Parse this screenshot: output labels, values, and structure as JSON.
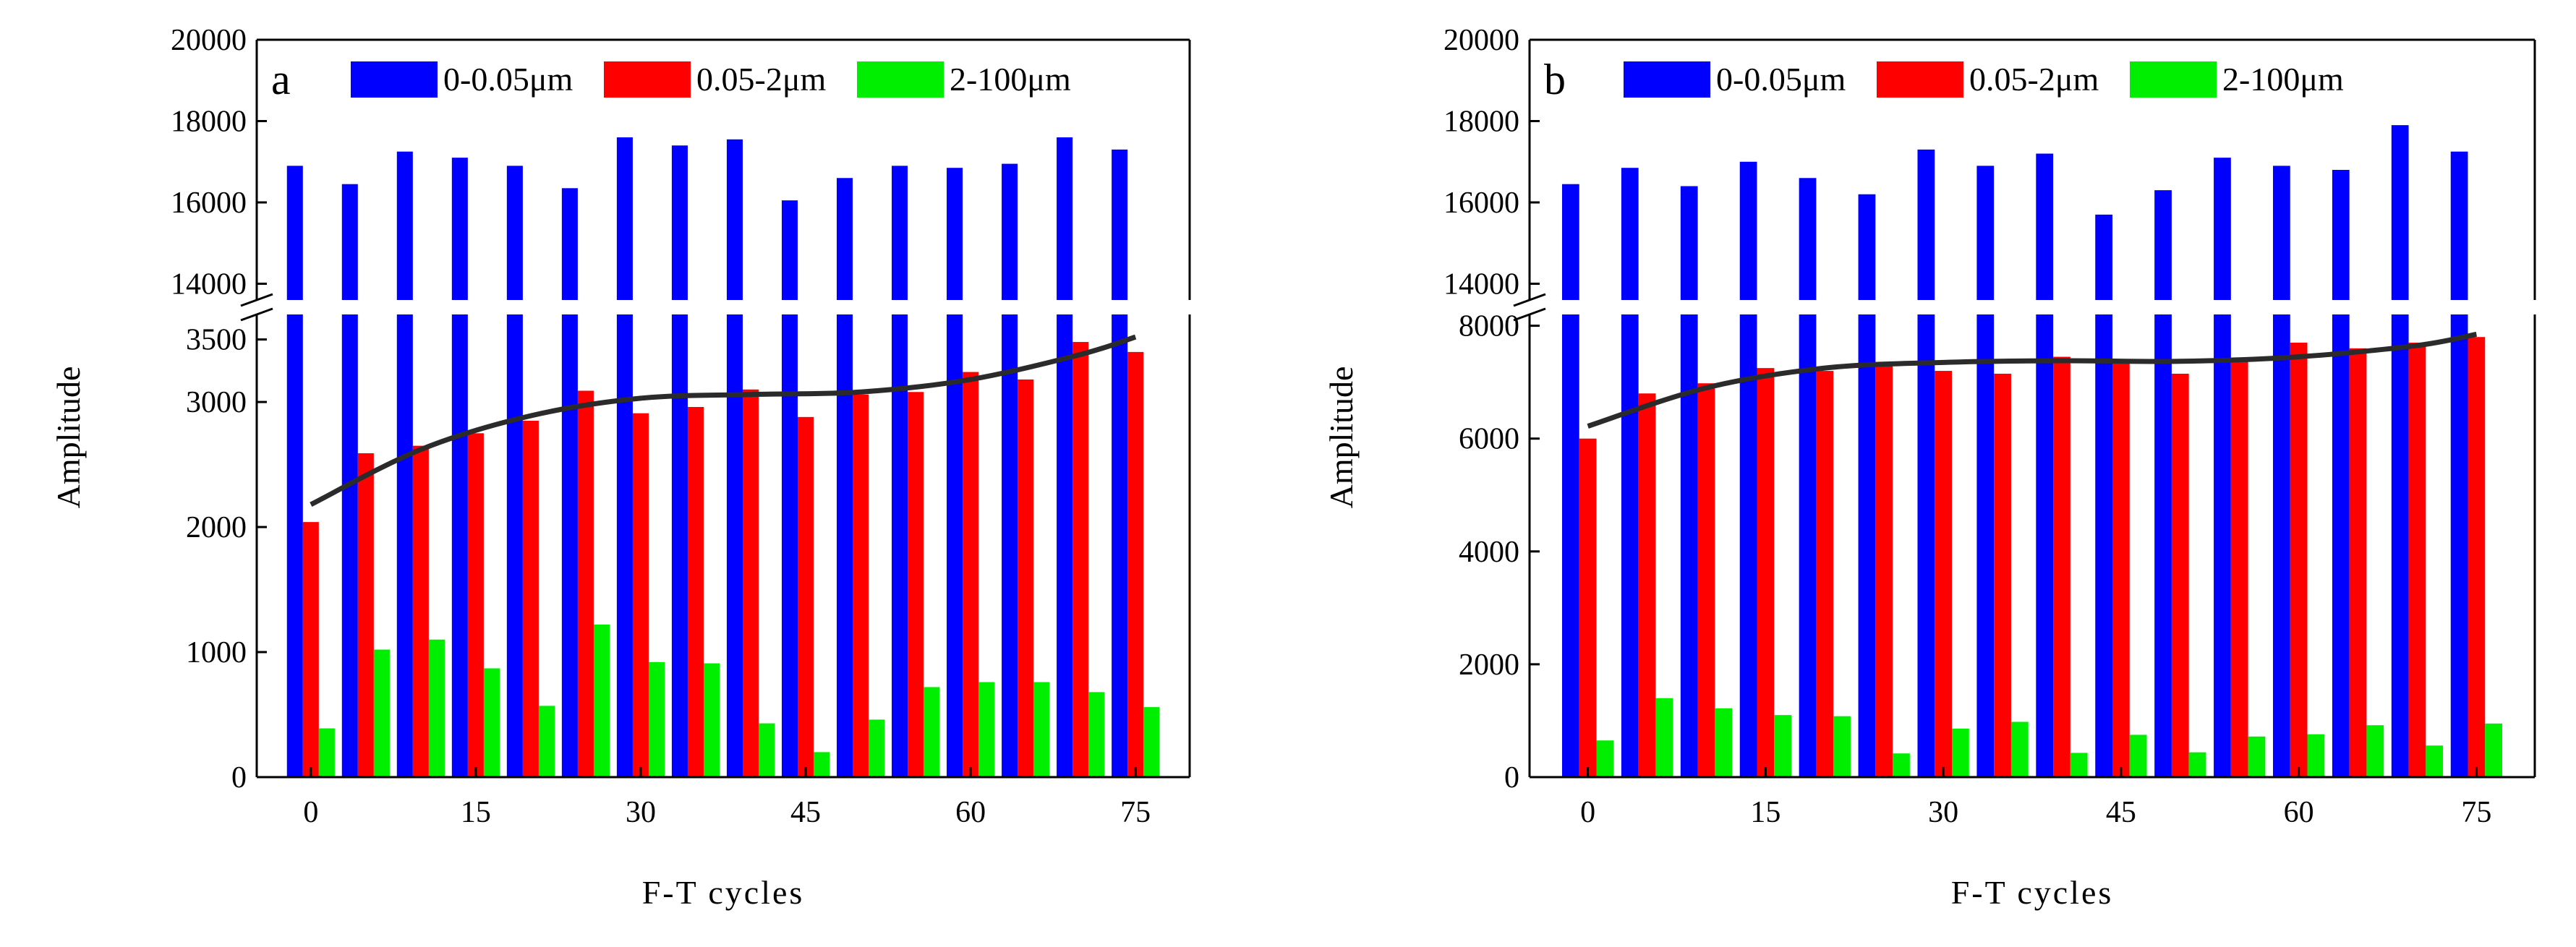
{
  "chart_data": [
    {
      "type": "bar",
      "panel_label": "a",
      "xlabel": "F-T cycles",
      "ylabel": "Amplitude",
      "x": [
        0,
        5,
        10,
        15,
        20,
        25,
        30,
        35,
        40,
        45,
        50,
        55,
        60,
        65,
        70,
        75
      ],
      "xticks": [
        "0",
        "15",
        "30",
        "45",
        "60",
        "75"
      ],
      "legend_position": "top",
      "series": [
        {
          "name": "0-0.05μm",
          "color": "#0000ff",
          "values": [
            16900,
            16450,
            17250,
            17100,
            16900,
            16350,
            17600,
            17400,
            17550,
            16050,
            16600,
            16900,
            16850,
            16950,
            17600,
            17300
          ]
        },
        {
          "name": "0.05-2μm",
          "color": "#ff0000",
          "values": [
            2040,
            2590,
            2650,
            2750,
            2850,
            3090,
            2910,
            2960,
            3100,
            2880,
            3060,
            3080,
            3240,
            3180,
            3480,
            3400
          ]
        },
        {
          "name": "2-100μm",
          "color": "#00ee00",
          "values": [
            390,
            1020,
            1100,
            870,
            570,
            1220,
            920,
            910,
            430,
            200,
            460,
            720,
            760,
            760,
            680,
            560
          ]
        }
      ],
      "trend_line": {
        "x": [
          0,
          10,
          20,
          30,
          40,
          50,
          60,
          70,
          75
        ],
        "y": [
          2180,
          2620,
          2890,
          3030,
          3060,
          3080,
          3180,
          3380,
          3520
        ]
      },
      "broken_axis": {
        "lower": {
          "ylim": [
            0,
            3700
          ],
          "ticks": [
            "0",
            "1000",
            "2000",
            "3000",
            "3500"
          ],
          "tick_values": [
            0,
            1000,
            2000,
            3000,
            3500
          ]
        },
        "upper": {
          "ylim": [
            13600,
            20000
          ],
          "ticks": [
            "14000",
            "16000",
            "18000",
            "20000"
          ],
          "tick_values": [
            14000,
            16000,
            18000,
            20000
          ]
        }
      }
    },
    {
      "type": "bar",
      "panel_label": "b",
      "xlabel": "F-T cycles",
      "ylabel": "Amplitude",
      "x": [
        0,
        5,
        10,
        15,
        20,
        25,
        30,
        35,
        40,
        45,
        50,
        55,
        60,
        65,
        70,
        75
      ],
      "xticks": [
        "0",
        "15",
        "30",
        "45",
        "60",
        "75"
      ],
      "legend_position": "top",
      "series": [
        {
          "name": "0-0.05μm",
          "color": "#0000ff",
          "values": [
            16450,
            16850,
            16400,
            17000,
            16600,
            16200,
            17300,
            16900,
            17200,
            15700,
            16300,
            17100,
            16900,
            16800,
            17900,
            17250
          ]
        },
        {
          "name": "0.05-2μm",
          "color": "#ff0000",
          "values": [
            6000,
            6800,
            6980,
            7250,
            7200,
            7350,
            7200,
            7150,
            7450,
            7400,
            7150,
            7400,
            7700,
            7600,
            7700,
            7800
          ]
        },
        {
          "name": "2-100μm",
          "color": "#00ee00",
          "values": [
            650,
            1400,
            1220,
            1100,
            1080,
            420,
            860,
            980,
            430,
            750,
            440,
            720,
            760,
            920,
            560,
            950
          ]
        }
      ],
      "trend_line": {
        "x": [
          0,
          10,
          20,
          30,
          40,
          50,
          60,
          70,
          75
        ],
        "y": [
          6220,
          6900,
          7250,
          7350,
          7380,
          7370,
          7450,
          7650,
          7850
        ]
      },
      "broken_axis": {
        "lower": {
          "ylim": [
            0,
            8200
          ],
          "ticks": [
            "0",
            "2000",
            "4000",
            "6000",
            "8000"
          ],
          "tick_values": [
            0,
            2000,
            4000,
            6000,
            8000
          ]
        },
        "upper": {
          "ylim": [
            13600,
            20000
          ],
          "ticks": [
            "14000",
            "16000",
            "18000",
            "20000"
          ],
          "tick_values": [
            14000,
            16000,
            18000,
            20000
          ]
        }
      }
    }
  ]
}
